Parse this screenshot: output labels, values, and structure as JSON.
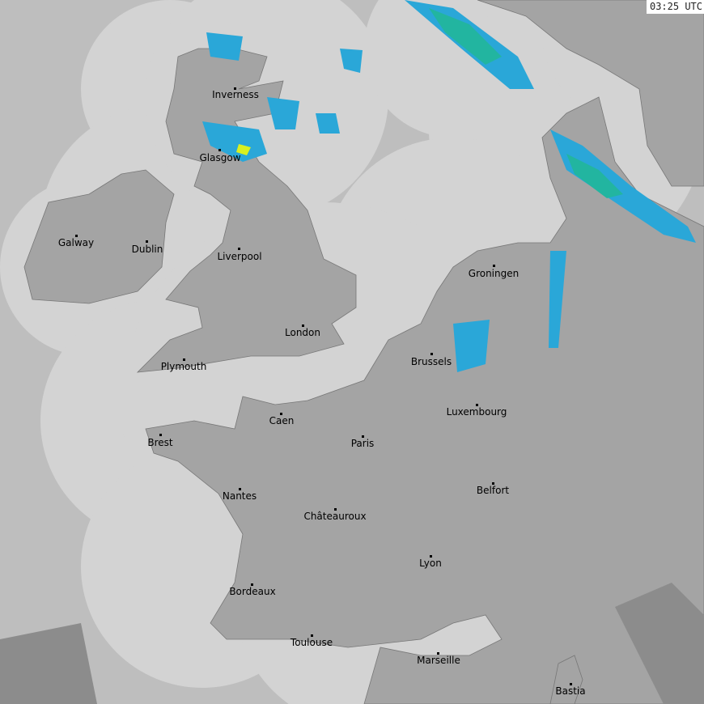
{
  "timestamp": "03:25 UTC",
  "colors": {
    "sea_outside": "#bebebe",
    "coverage": "#d3d3d3",
    "land": "#a4a4a4",
    "land_outside": "#8c8c8c",
    "radar_light": "#2aa7d8",
    "radar_mid": "#22b5a0",
    "radar_heavy": "#d8f020"
  },
  "cities": [
    {
      "name": "Inverness"
    },
    {
      "name": "Glasgow"
    },
    {
      "name": "Galway"
    },
    {
      "name": "Dublin"
    },
    {
      "name": "Liverpool"
    },
    {
      "name": "London"
    },
    {
      "name": "Plymouth"
    },
    {
      "name": "Groningen"
    },
    {
      "name": "Brussels"
    },
    {
      "name": "Luxembourg"
    },
    {
      "name": "Caen"
    },
    {
      "name": "Paris"
    },
    {
      "name": "Brest"
    },
    {
      "name": "Nantes"
    },
    {
      "name": "Belfort"
    },
    {
      "name": "Châteauroux"
    },
    {
      "name": "Lyon"
    },
    {
      "name": "Bordeaux"
    },
    {
      "name": "Toulouse"
    },
    {
      "name": "Marseille"
    },
    {
      "name": "Bastia"
    }
  ]
}
